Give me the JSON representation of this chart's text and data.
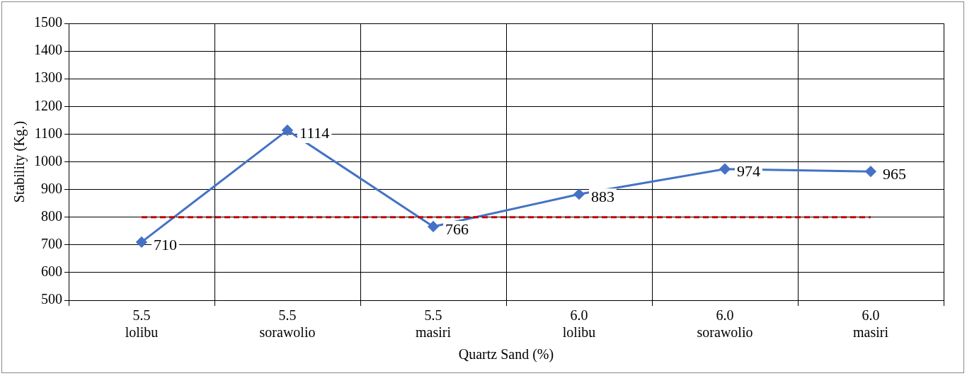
{
  "chart_data": {
    "type": "line",
    "xlabel": "Quartz Sand (%)",
    "ylabel": "Stability (Kg.)",
    "categories": [
      "5.5\nlolibu",
      "5.5\nsorawolio",
      "5.5\nmasiri",
      "6.0\nlolibu",
      "6.0\nsorawolio",
      "6.0\nmasiri"
    ],
    "series": [
      {
        "color": "#4472c4",
        "values": [
          710,
          1114,
          766,
          883,
          974,
          965
        ]
      }
    ],
    "ylim": [
      500,
      1500
    ],
    "yticks": [
      500,
      600,
      700,
      800,
      900,
      1000,
      1100,
      1200,
      1300,
      1400,
      1500
    ],
    "grid": true,
    "legend": false,
    "marker": "diamond",
    "line_style": "solid",
    "data_labels": true,
    "ref_lines": [
      {
        "axis": "y",
        "value": 800,
        "color": "#c00000",
        "line_style": "dashed"
      }
    ]
  }
}
